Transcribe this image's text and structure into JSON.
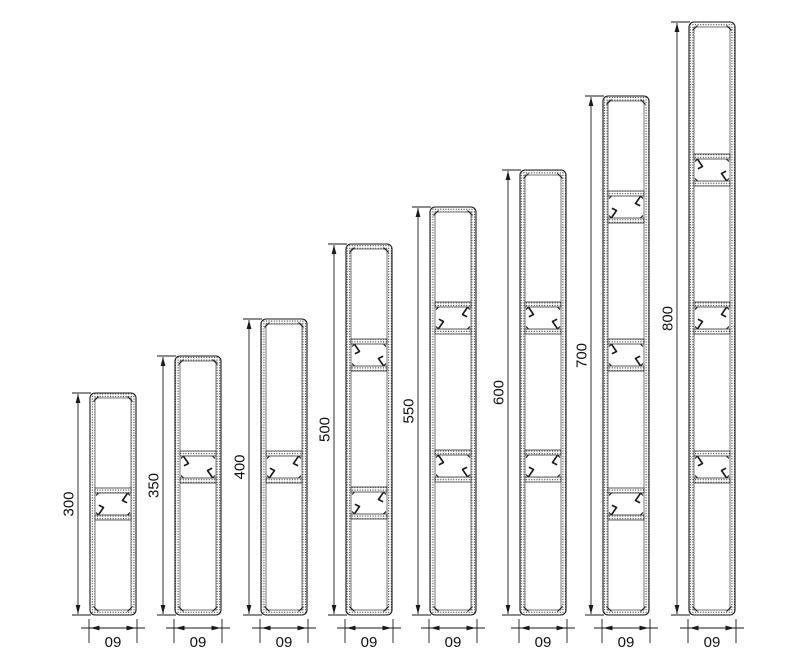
{
  "drawing": {
    "width_label": "09",
    "colors": {
      "line": "#1a1a1a",
      "wall_dot": "#3a3a3a",
      "inner_stroke": "#555555",
      "background": "#ffffff"
    },
    "profiles": [
      {
        "height_label": "300",
        "height_units": 300,
        "divider_centers_units": [
          150
        ]
      },
      {
        "height_label": "350",
        "height_units": 350,
        "divider_centers_units": [
          150
        ]
      },
      {
        "height_label": "400",
        "height_units": 400,
        "divider_centers_units": [
          200
        ]
      },
      {
        "height_label": "500",
        "height_units": 500,
        "divider_centers_units": [
          150,
          350
        ]
      },
      {
        "height_label": "550",
        "height_units": 550,
        "divider_centers_units": [
          150,
          350
        ]
      },
      {
        "height_label": "600",
        "height_units": 600,
        "divider_centers_units": [
          200,
          400
        ]
      },
      {
        "height_label": "700",
        "height_units": 700,
        "divider_centers_units": [
          150,
          350,
          550
        ]
      },
      {
        "height_label": "800",
        "height_units": 800,
        "divider_centers_units": [
          200,
          400,
          600
        ]
      }
    ]
  }
}
